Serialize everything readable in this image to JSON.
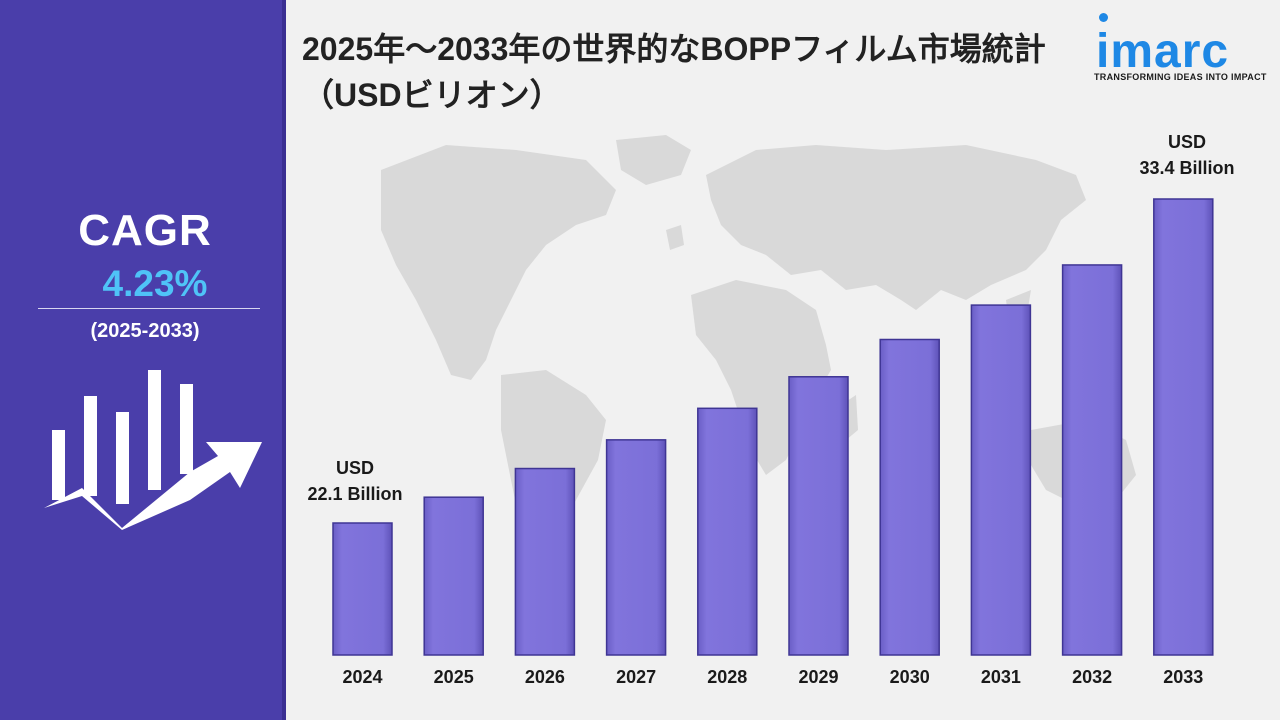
{
  "title": "2025年～2033年の世界的なBOPPフィルム市場統計（USDビリオン）",
  "sidebar": {
    "cagr_label": "CAGR",
    "cagr_value": "4.23%",
    "period": "(2025-2033)",
    "icon": "growth-chart-icon"
  },
  "logo": {
    "word": "imarc",
    "tagline": "TRANSFORMING IDEAS INTO IMPACT"
  },
  "annotations": {
    "first": {
      "line1": "USD",
      "line2": "22.1 Billion"
    },
    "last": {
      "line1": "USD",
      "line2": "33.4 Billion"
    }
  },
  "colors": {
    "sidebar": "#4a3eaa",
    "bar": "#7b6fd8",
    "accent": "#4fc3f7",
    "logo": "#1e88e5"
  },
  "chart_data": {
    "type": "bar",
    "categories": [
      "2024",
      "2025",
      "2026",
      "2027",
      "2028",
      "2029",
      "2030",
      "2031",
      "2032",
      "2033"
    ],
    "values": [
      22.1,
      23.0,
      24.0,
      25.0,
      26.1,
      27.2,
      28.5,
      29.7,
      31.1,
      33.4
    ],
    "units": "USD Billion",
    "xlabel": "",
    "ylabel": "",
    "grid": false,
    "legend": "none"
  }
}
